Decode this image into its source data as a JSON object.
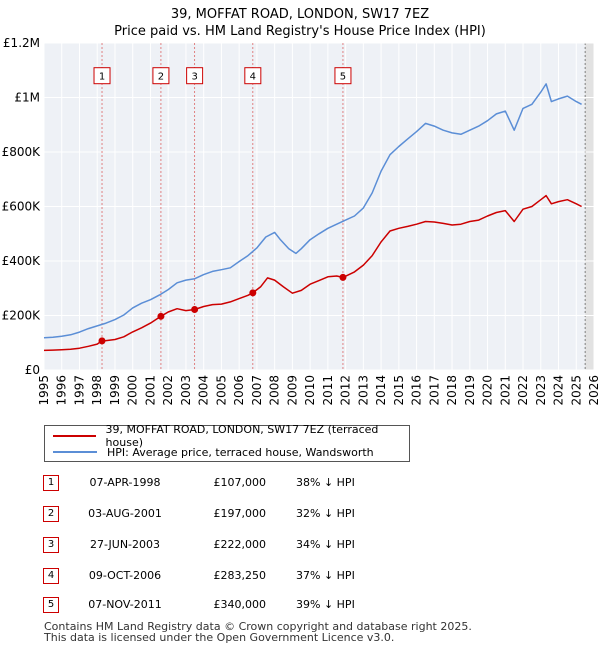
{
  "header": {
    "title": "39, MOFFAT ROAD, LONDON, SW17 7EZ",
    "subtitle": "Price paid vs. HM Land Registry's House Price Index (HPI)"
  },
  "chart_data": {
    "type": "line",
    "title": "39, MOFFAT ROAD, LONDON, SW17 7EZ",
    "subtitle": "Price paid vs. HM Land Registry's House Price Index (HPI)",
    "xlabel": "",
    "ylabel": "",
    "xlim": [
      1995,
      2026
    ],
    "ylim": [
      0,
      1200000
    ],
    "x_ticks": [
      1995,
      1996,
      1997,
      1998,
      1999,
      2000,
      2001,
      2002,
      2003,
      2004,
      2005,
      2006,
      2007,
      2008,
      2009,
      2010,
      2011,
      2012,
      2013,
      2014,
      2015,
      2016,
      2017,
      2018,
      2019,
      2020,
      2021,
      2022,
      2023,
      2024,
      2025,
      2026
    ],
    "y_ticks": [
      {
        "value": 0,
        "label": "£0"
      },
      {
        "value": 200000,
        "label": "£200K"
      },
      {
        "value": 400000,
        "label": "£400K"
      },
      {
        "value": 600000,
        "label": "£600K"
      },
      {
        "value": 800000,
        "label": "£800K"
      },
      {
        "value": 1000000,
        "label": "£1M"
      },
      {
        "value": 1200000,
        "label": "£1.2M"
      }
    ],
    "grid": true,
    "legend_position": "bottom",
    "series": [
      {
        "name": "39, MOFFAT ROAD, LONDON, SW17 7EZ (terraced house)",
        "color": "#cc0000",
        "points": [
          [
            1995.0,
            72000
          ],
          [
            1995.5,
            73000
          ],
          [
            1996.0,
            74000
          ],
          [
            1996.5,
            76000
          ],
          [
            1997.0,
            80000
          ],
          [
            1997.5,
            87000
          ],
          [
            1998.0,
            95000
          ],
          [
            1998.27,
            107000
          ],
          [
            1998.5,
            108000
          ],
          [
            1999.0,
            112000
          ],
          [
            1999.5,
            122000
          ],
          [
            2000.0,
            140000
          ],
          [
            2000.5,
            155000
          ],
          [
            2001.0,
            172000
          ],
          [
            2001.59,
            197000
          ],
          [
            2002.0,
            213000
          ],
          [
            2002.5,
            225000
          ],
          [
            2003.0,
            218000
          ],
          [
            2003.49,
            222000
          ],
          [
            2004.0,
            233000
          ],
          [
            2004.5,
            240000
          ],
          [
            2005.0,
            242000
          ],
          [
            2005.5,
            250000
          ],
          [
            2006.0,
            262000
          ],
          [
            2006.5,
            274000
          ],
          [
            2006.77,
            283250
          ],
          [
            2007.2,
            305000
          ],
          [
            2007.6,
            338000
          ],
          [
            2008.0,
            330000
          ],
          [
            2008.5,
            305000
          ],
          [
            2009.0,
            282000
          ],
          [
            2009.5,
            292000
          ],
          [
            2010.0,
            315000
          ],
          [
            2010.5,
            328000
          ],
          [
            2011.0,
            342000
          ],
          [
            2011.5,
            345000
          ],
          [
            2011.85,
            340000
          ],
          [
            2012.5,
            360000
          ],
          [
            2013.0,
            385000
          ],
          [
            2013.5,
            420000
          ],
          [
            2014.0,
            470000
          ],
          [
            2014.5,
            510000
          ],
          [
            2015.0,
            520000
          ],
          [
            2015.5,
            527000
          ],
          [
            2016.0,
            535000
          ],
          [
            2016.5,
            545000
          ],
          [
            2017.0,
            543000
          ],
          [
            2017.5,
            538000
          ],
          [
            2018.0,
            532000
          ],
          [
            2018.5,
            535000
          ],
          [
            2019.0,
            545000
          ],
          [
            2019.5,
            550000
          ],
          [
            2020.0,
            565000
          ],
          [
            2020.5,
            578000
          ],
          [
            2021.0,
            585000
          ],
          [
            2021.5,
            545000
          ],
          [
            2022.0,
            590000
          ],
          [
            2022.5,
            600000
          ],
          [
            2023.0,
            625000
          ],
          [
            2023.3,
            640000
          ],
          [
            2023.6,
            610000
          ],
          [
            2024.0,
            618000
          ],
          [
            2024.5,
            625000
          ],
          [
            2025.0,
            610000
          ],
          [
            2025.3,
            600000
          ]
        ]
      },
      {
        "name": "HPI: Average price, terraced house, Wandsworth",
        "color": "#5b8ed6",
        "points": [
          [
            1995.0,
            118000
          ],
          [
            1995.5,
            120000
          ],
          [
            1996.0,
            124000
          ],
          [
            1996.5,
            129000
          ],
          [
            1997.0,
            139000
          ],
          [
            1997.5,
            152000
          ],
          [
            1998.0,
            162000
          ],
          [
            1998.5,
            172000
          ],
          [
            1999.0,
            185000
          ],
          [
            1999.5,
            202000
          ],
          [
            2000.0,
            228000
          ],
          [
            2000.5,
            245000
          ],
          [
            2001.0,
            258000
          ],
          [
            2001.5,
            275000
          ],
          [
            2002.0,
            295000
          ],
          [
            2002.5,
            320000
          ],
          [
            2003.0,
            330000
          ],
          [
            2003.5,
            335000
          ],
          [
            2004.0,
            350000
          ],
          [
            2004.5,
            362000
          ],
          [
            2005.0,
            368000
          ],
          [
            2005.5,
            375000
          ],
          [
            2006.0,
            398000
          ],
          [
            2006.5,
            420000
          ],
          [
            2007.0,
            448000
          ],
          [
            2007.5,
            488000
          ],
          [
            2008.0,
            505000
          ],
          [
            2008.3,
            480000
          ],
          [
            2008.8,
            445000
          ],
          [
            2009.2,
            428000
          ],
          [
            2009.5,
            445000
          ],
          [
            2010.0,
            478000
          ],
          [
            2010.5,
            500000
          ],
          [
            2011.0,
            520000
          ],
          [
            2011.5,
            535000
          ],
          [
            2012.0,
            550000
          ],
          [
            2012.5,
            565000
          ],
          [
            2013.0,
            595000
          ],
          [
            2013.5,
            650000
          ],
          [
            2014.0,
            730000
          ],
          [
            2014.5,
            790000
          ],
          [
            2015.0,
            820000
          ],
          [
            2015.5,
            848000
          ],
          [
            2016.0,
            875000
          ],
          [
            2016.5,
            905000
          ],
          [
            2017.0,
            895000
          ],
          [
            2017.5,
            880000
          ],
          [
            2018.0,
            870000
          ],
          [
            2018.5,
            865000
          ],
          [
            2019.0,
            880000
          ],
          [
            2019.5,
            895000
          ],
          [
            2020.0,
            915000
          ],
          [
            2020.5,
            940000
          ],
          [
            2021.0,
            950000
          ],
          [
            2021.5,
            880000
          ],
          [
            2022.0,
            960000
          ],
          [
            2022.5,
            975000
          ],
          [
            2023.0,
            1020000
          ],
          [
            2023.3,
            1050000
          ],
          [
            2023.6,
            985000
          ],
          [
            2024.0,
            995000
          ],
          [
            2024.5,
            1005000
          ],
          [
            2025.0,
            985000
          ],
          [
            2025.3,
            975000
          ]
        ]
      }
    ],
    "transactions": [
      {
        "num": "1",
        "x": 1998.27,
        "price": 107000
      },
      {
        "num": "2",
        "x": 2001.59,
        "price": 197000
      },
      {
        "num": "3",
        "x": 2003.49,
        "price": 222000
      },
      {
        "num": "4",
        "x": 2006.77,
        "price": 283250
      },
      {
        "num": "5",
        "x": 2011.85,
        "price": 340000
      }
    ],
    "projection_start": 2025.5,
    "annotation_label_value": 1080000
  },
  "legend": {
    "items": [
      {
        "label": "39, MOFFAT ROAD, LONDON, SW17 7EZ (terraced house)",
        "color": "#cc0000"
      },
      {
        "label": "HPI: Average price, terraced house, Wandsworth",
        "color": "#5b8ed6"
      }
    ]
  },
  "table": {
    "rows": [
      {
        "num": "1",
        "date": "07-APR-1998",
        "price": "£107,000",
        "hpi": "38% ↓ HPI"
      },
      {
        "num": "2",
        "date": "03-AUG-2001",
        "price": "£197,000",
        "hpi": "32% ↓ HPI"
      },
      {
        "num": "3",
        "date": "27-JUN-2003",
        "price": "£222,000",
        "hpi": "34% ↓ HPI"
      },
      {
        "num": "4",
        "date": "09-OCT-2006",
        "price": "£283,250",
        "hpi": "37% ↓ HPI"
      },
      {
        "num": "5",
        "date": "07-NOV-2011",
        "price": "£340,000",
        "hpi": "39% ↓ HPI"
      }
    ]
  },
  "footer": {
    "line1": "Contains HM Land Registry data © Crown copyright and database right 2025.",
    "line2": "This data is licensed under the Open Government Licence v3.0."
  }
}
